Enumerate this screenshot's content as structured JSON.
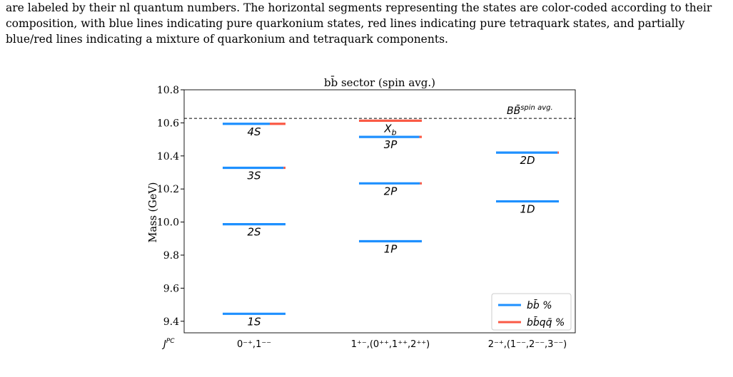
{
  "caption": {
    "lines": [
      "are labeled by their nl quantum numbers. The horizontal segments representing the states are color-coded according to their",
      "composition, with blue lines indicating pure quarkonium states, red lines indicating pure tetraquark states, and partially",
      "blue/red lines indicating a mixture of quarkonium and tetraquark components."
    ]
  },
  "chart_data": {
    "type": "level-diagram",
    "title": "bb̄ sector (spin avg.)",
    "ylabel": "Mass (GeV)",
    "ylim": [
      9.33,
      10.8
    ],
    "yticks": [
      "9.4",
      "9.6",
      "9.8",
      "10.0",
      "10.2",
      "10.4",
      "10.6",
      "10.8"
    ],
    "ytick_values": [
      9.4,
      9.6,
      9.8,
      10.0,
      10.2,
      10.4,
      10.6,
      10.8
    ],
    "x_axis_label": "J^PC",
    "categories": [
      "0⁻⁺,1⁻⁻",
      "1⁺⁻,(0⁺⁺,1⁺⁺,2⁺⁺)",
      "2⁻⁺,(1⁻⁻,2⁻⁻,3⁻⁻)"
    ],
    "threshold": {
      "label": "BB̄ spin avg.",
      "value": 10.627
    },
    "colors": {
      "quarkonium": "#1e90ff",
      "tetraquark": "#fa5a46",
      "threshold": "#000000"
    },
    "states": [
      {
        "category": 0,
        "label": "1S",
        "mass": 9.445,
        "quarkonium_fraction": 1.0
      },
      {
        "category": 0,
        "label": "2S",
        "mass": 9.987,
        "quarkonium_fraction": 1.0
      },
      {
        "category": 0,
        "label": "3S",
        "mass": 10.328,
        "quarkonium_fraction": 0.97
      },
      {
        "category": 0,
        "label": "4S",
        "mass": 10.594,
        "quarkonium_fraction": 0.75
      },
      {
        "category": 1,
        "label": "1P",
        "mass": 9.884,
        "quarkonium_fraction": 1.0
      },
      {
        "category": 1,
        "label": "2P",
        "mass": 10.234,
        "quarkonium_fraction": 0.97
      },
      {
        "category": 1,
        "label": "3P",
        "mass": 10.515,
        "quarkonium_fraction": 0.96
      },
      {
        "category": 1,
        "label": "X_b",
        "mass": 10.613,
        "quarkonium_fraction": 0.0
      },
      {
        "category": 2,
        "label": "1D",
        "mass": 10.125,
        "quarkonium_fraction": 1.0
      },
      {
        "category": 2,
        "label": "2D",
        "mass": 10.42,
        "quarkonium_fraction": 0.98
      }
    ],
    "legend": {
      "placement": "lower-right",
      "entries": [
        {
          "label": "bb̄ %",
          "color": "#1e90ff"
        },
        {
          "label": "bb̄qq̄ %",
          "color": "#fa5a46"
        }
      ]
    }
  }
}
